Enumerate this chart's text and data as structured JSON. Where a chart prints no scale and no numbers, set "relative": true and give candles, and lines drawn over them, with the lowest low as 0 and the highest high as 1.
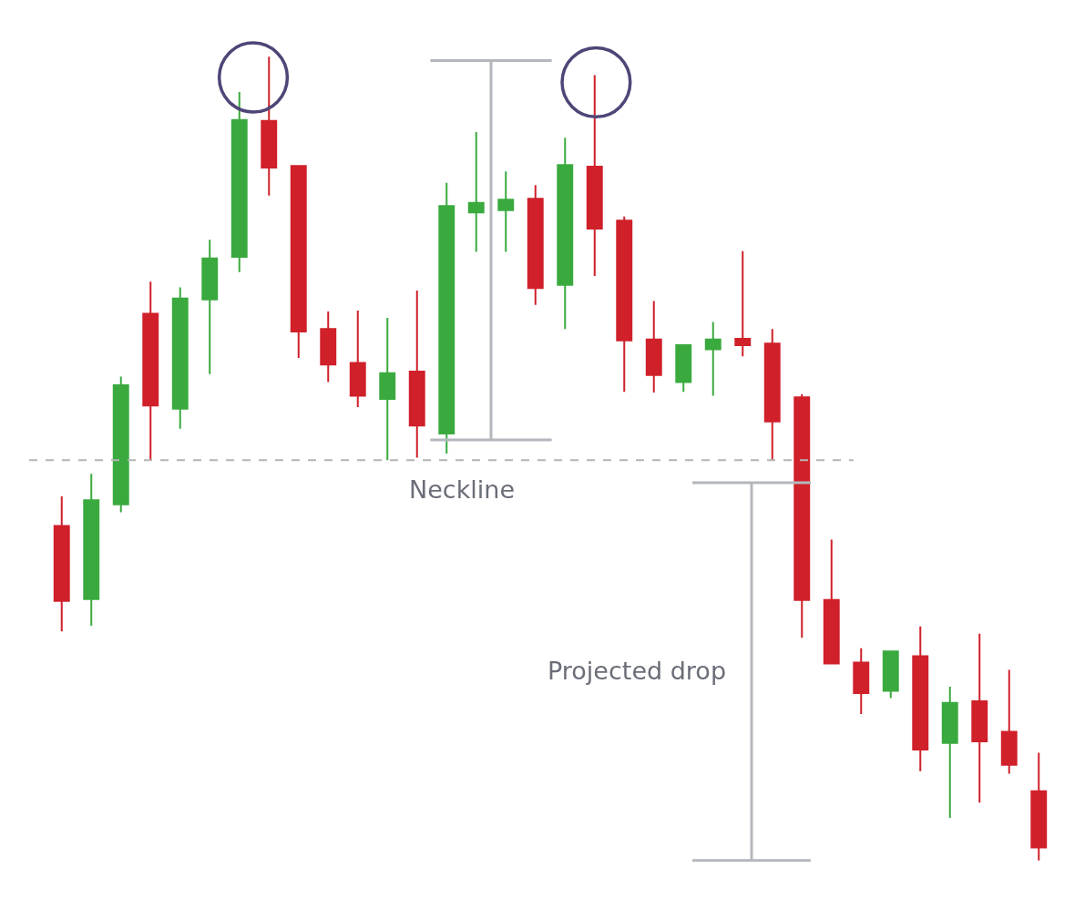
{
  "chart_data": {
    "type": "candlestick",
    "relative": true,
    "categories": [
      null,
      null,
      null,
      null,
      null,
      null,
      null,
      null,
      null,
      null,
      null,
      null,
      null,
      null,
      null,
      null,
      null,
      null,
      null,
      null,
      null,
      null,
      null,
      null,
      null,
      null,
      null,
      null,
      null,
      null,
      null,
      null,
      null,
      null
    ],
    "ohlc": [
      [
        0.416,
        0.453,
        0.285,
        0.323
      ],
      [
        0.325,
        0.481,
        0.292,
        0.448
      ],
      [
        0.443,
        0.602,
        0.433,
        0.591
      ],
      [
        0.68,
        0.72,
        0.498,
        0.566
      ],
      [
        0.562,
        0.713,
        0.537,
        0.699
      ],
      [
        0.698,
        0.772,
        0.605,
        0.749
      ],
      [
        0.751,
        0.956,
        0.732,
        0.921
      ],
      [
        0.92,
        1.0,
        0.827,
        0.862
      ],
      [
        0.864,
        0.864,
        0.625,
        0.658
      ],
      [
        0.661,
        0.683,
        0.595,
        0.617
      ],
      [
        0.619,
        0.684,
        0.564,
        0.578
      ],
      [
        0.574,
        0.675,
        0.498,
        0.606
      ],
      [
        0.608,
        0.709,
        0.501,
        0.541
      ],
      [
        0.531,
        0.843,
        0.506,
        0.814
      ],
      [
        0.806,
        0.906,
        0.757,
        0.818
      ],
      [
        0.809,
        0.857,
        0.757,
        0.822
      ],
      [
        0.823,
        0.84,
        0.691,
        0.712
      ],
      [
        0.716,
        0.899,
        0.661,
        0.865
      ],
      [
        0.863,
        0.977,
        0.727,
        0.786
      ],
      [
        0.796,
        0.801,
        0.583,
        0.647
      ],
      [
        0.648,
        0.696,
        0.582,
        0.604
      ],
      [
        0.595,
        0.641,
        0.583,
        0.641
      ],
      [
        0.636,
        0.67,
        0.578,
        0.648
      ],
      [
        0.649,
        0.758,
        0.627,
        0.641
      ],
      [
        0.643,
        0.661,
        0.498,
        0.546
      ],
      [
        0.576,
        0.58,
        0.277,
        0.324
      ],
      [
        0.324,
        0.399,
        0.245,
        0.245
      ],
      [
        0.246,
        0.264,
        0.182,
        0.208
      ],
      [
        0.211,
        0.26,
        0.202,
        0.26
      ],
      [
        0.254,
        0.291,
        0.111,
        0.138
      ],
      [
        0.146,
        0.216,
        0.053,
        0.196
      ],
      [
        0.198,
        0.282,
        0.072,
        0.148
      ],
      [
        0.16,
        0.237,
        0.108,
        0.119
      ],
      [
        0.086,
        0.134,
        0.0,
        0.016
      ]
    ],
    "colors": [
      "#d0202a",
      "#3aaa3f",
      "#3aaa3f",
      "#d0202a",
      "#3aaa3f",
      "#3aaa3f",
      "#3aaa3f",
      "#d0202a",
      "#d0202a",
      "#d0202a",
      "#d0202a",
      "#3aaa3f",
      "#d0202a",
      "#3aaa3f",
      "#3aaa3f",
      "#3aaa3f",
      "#d0202a",
      "#3aaa3f",
      "#d0202a",
      "#d0202a",
      "#d0202a",
      "#3aaa3f",
      "#3aaa3f",
      "#d0202a",
      "#d0202a",
      "#d0202a",
      "#d0202a",
      "#d0202a",
      "#3aaa3f",
      "#d0202a",
      "#3aaa3f",
      "#d0202a",
      "#d0202a",
      "#d0202a"
    ],
    "ref_lines": [
      {
        "axis": "y",
        "value": 0.498,
        "label": "Neckline",
        "color": "#b4b4b4",
        "line_style": "dashed"
      }
    ],
    "annotations": [
      "Projected drop"
    ]
  }
}
